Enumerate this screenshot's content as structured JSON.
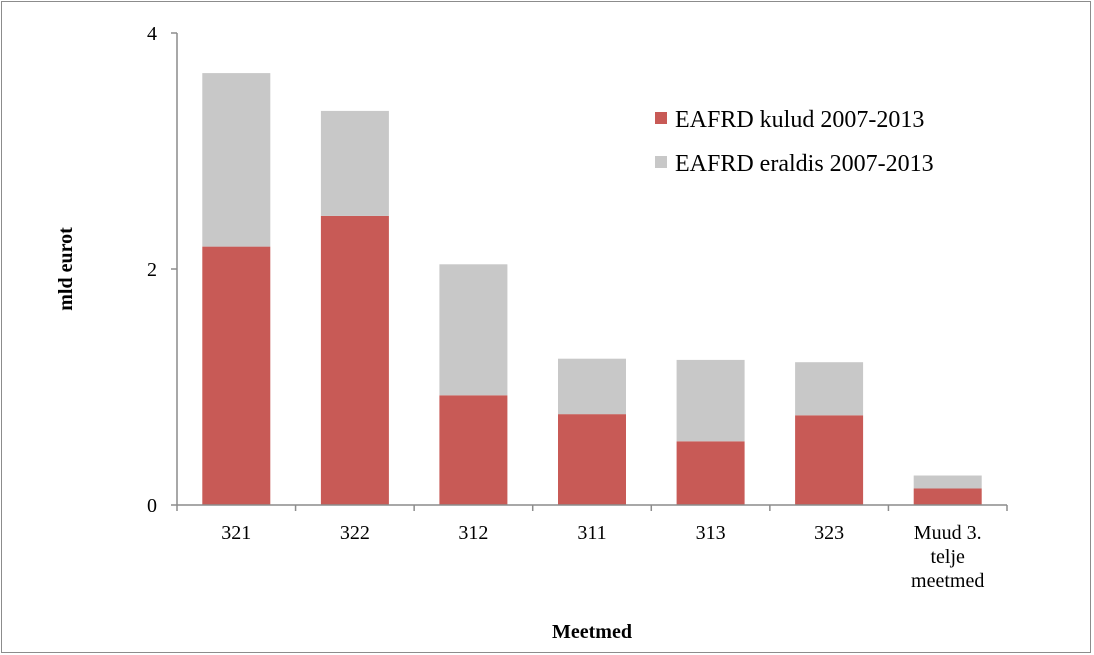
{
  "chart_data": {
    "type": "bar",
    "stacked": true,
    "categories": [
      [
        "321"
      ],
      [
        "322"
      ],
      [
        "312"
      ],
      [
        "311"
      ],
      [
        "313"
      ],
      [
        "323"
      ],
      [
        "Muud 3.",
        "telje",
        "meetmed"
      ]
    ],
    "series": [
      {
        "name": "EAFRD kulud 2007-2013",
        "color": "#c85a56",
        "values": [
          2.19,
          2.45,
          0.93,
          0.77,
          0.54,
          0.76,
          0.14
        ]
      },
      {
        "name": "EAFRD eraldis 2007-2013",
        "color": "#c8c8c8",
        "values": [
          1.47,
          0.89,
          1.11,
          0.47,
          0.69,
          0.45,
          0.11
        ]
      }
    ],
    "xlabel": "Meetmed",
    "ylabel": "mld eurot",
    "ylim": [
      0,
      4
    ],
    "yticks": [
      0,
      2,
      4
    ],
    "grid": false,
    "legend_position": "top-right"
  }
}
